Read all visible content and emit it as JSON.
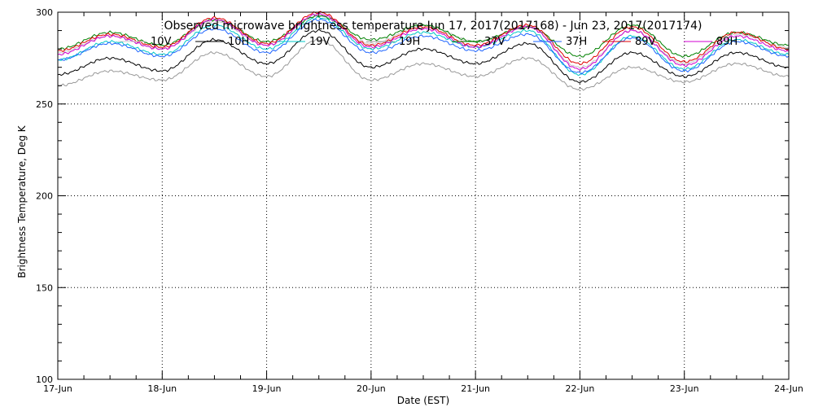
{
  "chart_data": {
    "type": "line",
    "title": "Observed microwave brightness temperature Jun 17, 2017(2017168) - Jun 23, 2017(2017174)",
    "xlabel": "Date (EST)",
    "ylabel": "Brightness Temperature, Deg K",
    "xlim": [
      "17-Jun",
      "24-Jun"
    ],
    "ylim": [
      100,
      300
    ],
    "x_ticks": [
      "17-Jun",
      "18-Jun",
      "19-Jun",
      "20-Jun",
      "21-Jun",
      "22-Jun",
      "23-Jun",
      "24-Jun"
    ],
    "y_ticks": [
      100,
      150,
      200,
      250,
      300
    ],
    "grid": "dotted, major ticks",
    "legend_placement": "top, inside plot",
    "x": [
      "17-Jun 00:00",
      "17-Jun 12:00",
      "18-Jun 00:00",
      "18-Jun 12:00",
      "19-Jun 00:00",
      "19-Jun 12:00",
      "20-Jun 00:00",
      "20-Jun 12:00",
      "21-Jun 00:00",
      "21-Jun 12:00",
      "22-Jun 00:00",
      "22-Jun 12:00",
      "23-Jun 00:00",
      "23-Jun 12:00",
      "24-Jun 00:00"
    ],
    "series": [
      {
        "name": "10V",
        "color": "#c8c8c8",
        "values": [
          278,
          287,
          280,
          295,
          282,
          298,
          283,
          293,
          284,
          292,
          270,
          290,
          272,
          288,
          281
        ]
      },
      {
        "name": "10H",
        "color": "#000000",
        "values": [
          266,
          275,
          268,
          285,
          272,
          290,
          270,
          280,
          272,
          283,
          262,
          278,
          265,
          278,
          270
        ]
      },
      {
        "name": "19V",
        "color": "#00c8c8",
        "values": [
          274,
          284,
          277,
          293,
          280,
          297,
          280,
          289,
          281,
          290,
          266,
          287,
          269,
          285,
          277
        ]
      },
      {
        "name": "19H",
        "color": "#999999",
        "values": [
          260,
          268,
          263,
          278,
          265,
          285,
          263,
          272,
          265,
          275,
          258,
          270,
          262,
          272,
          265
        ]
      },
      {
        "name": "37V",
        "color": "#008000",
        "values": [
          280,
          289,
          282,
          296,
          284,
          298,
          285,
          293,
          284,
          292,
          276,
          293,
          276,
          289,
          282
        ]
      },
      {
        "name": "37H",
        "color": "#1e64ff",
        "values": [
          274,
          283,
          276,
          291,
          278,
          296,
          278,
          287,
          279,
          288,
          267,
          286,
          268,
          284,
          276
        ]
      },
      {
        "name": "89V",
        "color": "#e00000",
        "values": [
          279,
          288,
          281,
          297,
          283,
          300,
          282,
          292,
          282,
          293,
          272,
          292,
          273,
          289,
          280
        ]
      },
      {
        "name": "89H",
        "color": "#d000d0",
        "values": [
          277,
          287,
          280,
          296,
          282,
          299,
          281,
          291,
          281,
          292,
          269,
          290,
          271,
          287,
          279
        ]
      }
    ]
  }
}
